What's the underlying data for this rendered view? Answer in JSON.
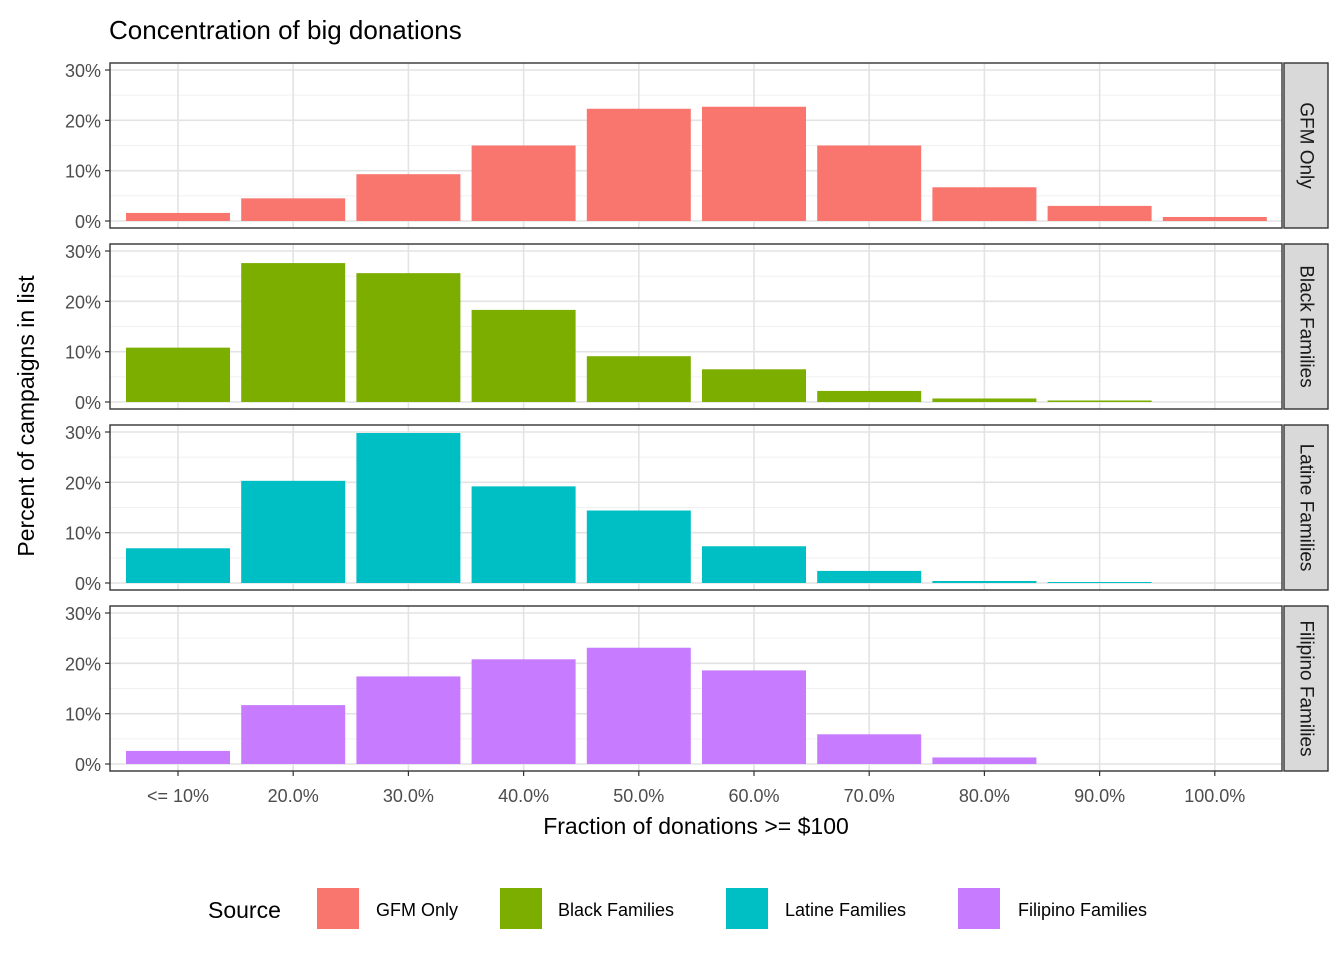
{
  "chart_data": {
    "type": "bar",
    "title": "Concentration of big donations",
    "xlabel": "Fraction of donations >= $100",
    "ylabel": "Percent of campaigns in list",
    "categories": [
      "<= 10%",
      "20.0%",
      "30.0%",
      "40.0%",
      "50.0%",
      "60.0%",
      "70.0%",
      "80.0%",
      "90.0%",
      "100.0%"
    ],
    "y_ticks": [
      "0%",
      "10%",
      "20%",
      "30%"
    ],
    "ylim": [
      0,
      30
    ],
    "grid": true,
    "legend_title": "Source",
    "legend_position": "bottom",
    "series": [
      {
        "name": "GFM Only",
        "color": "#F8766D",
        "values": [
          1.6,
          4.5,
          9.3,
          15.0,
          22.3,
          22.7,
          15.0,
          6.7,
          3.0,
          0.8
        ]
      },
      {
        "name": "Black Families",
        "color": "#7CAE00",
        "values": [
          10.8,
          27.6,
          25.6,
          18.3,
          9.1,
          6.5,
          2.2,
          0.7,
          0.3,
          0.0
        ]
      },
      {
        "name": "Latine Families",
        "color": "#00BFC4",
        "values": [
          6.9,
          20.3,
          29.8,
          19.2,
          14.4,
          7.3,
          2.4,
          0.4,
          0.2,
          0.0
        ]
      },
      {
        "name": "Filipino Families",
        "color": "#C77CFF",
        "values": [
          2.6,
          11.7,
          17.4,
          20.8,
          23.1,
          18.6,
          5.9,
          1.3,
          0.0,
          0.0
        ]
      }
    ]
  }
}
